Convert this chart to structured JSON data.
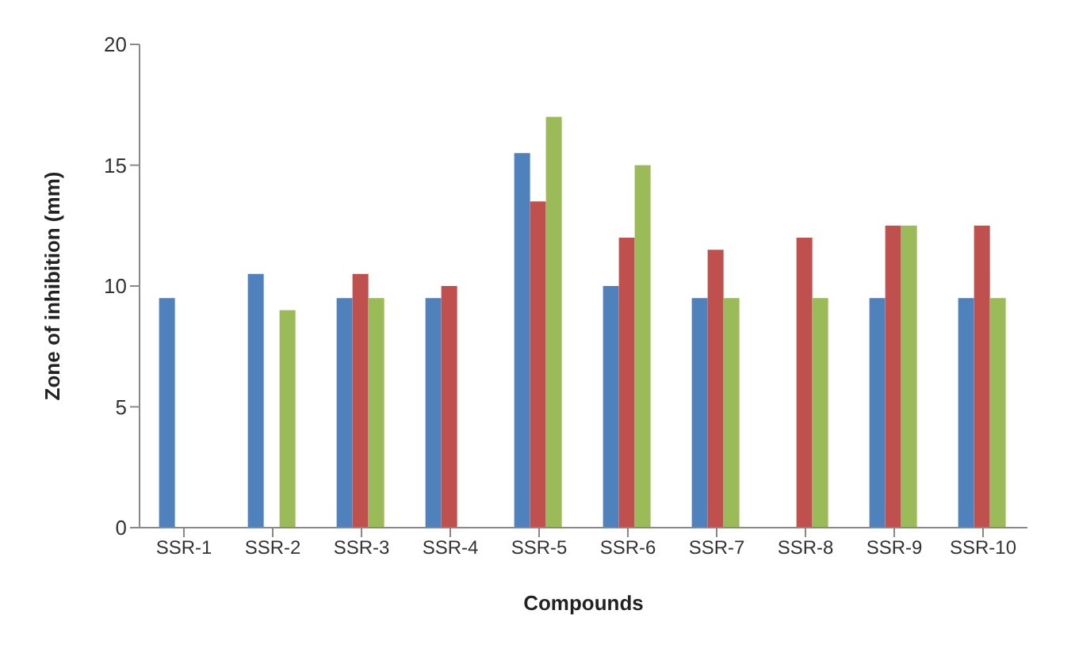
{
  "chart_data": {
    "type": "bar",
    "xlabel": "Compounds",
    "ylabel": "Zone of inhibition (mm)",
    "categories": [
      "SSR-1",
      "SSR-2",
      "SSR-3",
      "SSR-4",
      "SSR-5",
      "SSR-6",
      "SSR-7",
      "SSR-8",
      "SSR-9",
      "SSR-10"
    ],
    "series": [
      {
        "color": "#4f81bd",
        "values": [
          9.5,
          10.5,
          9.5,
          9.5,
          15.5,
          10,
          9.5,
          null,
          9.5,
          9.5
        ]
      },
      {
        "color": "#c0504d",
        "values": [
          null,
          null,
          10.5,
          10,
          13.5,
          12,
          11.5,
          12,
          12.5,
          12.5
        ]
      },
      {
        "color": "#9bbb59",
        "values": [
          null,
          9,
          9.5,
          null,
          17,
          15,
          9.5,
          9.5,
          12.5,
          9.5
        ]
      }
    ],
    "ylim": [
      0,
      20
    ],
    "yticks": [
      0,
      5,
      10,
      15,
      20
    ],
    "grid": false,
    "legend": false
  }
}
